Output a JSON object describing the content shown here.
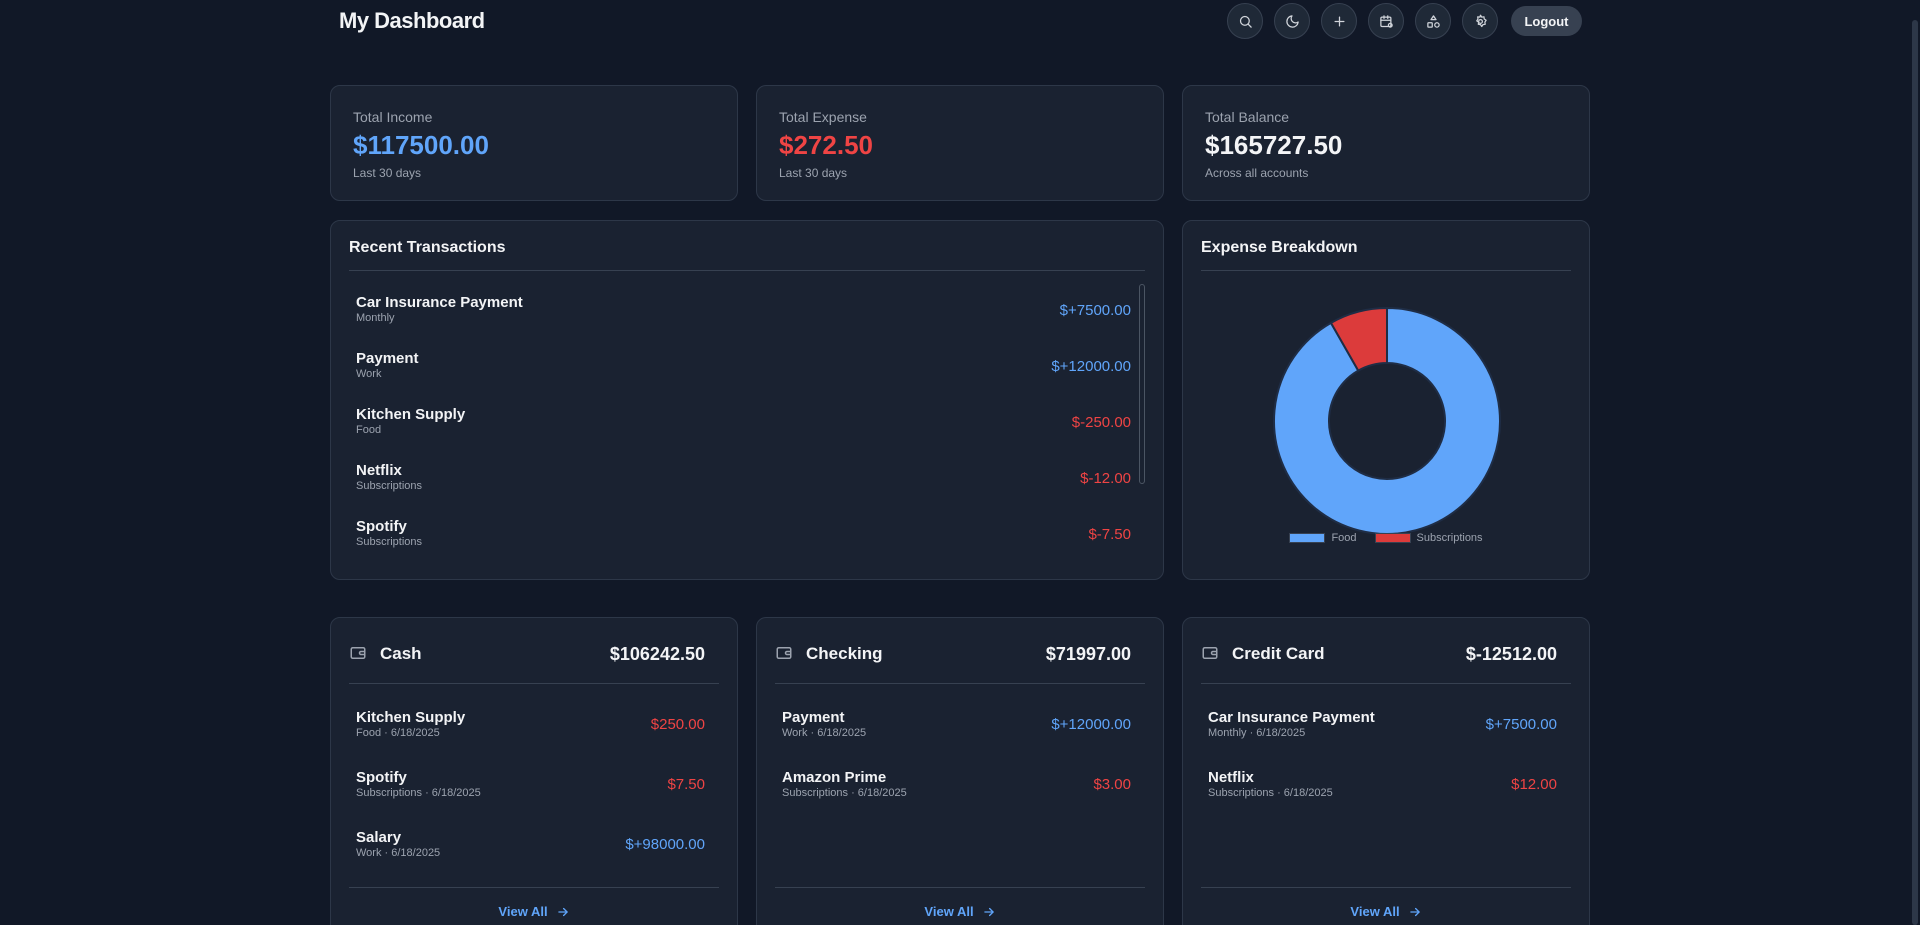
{
  "header": {
    "title": "My Dashboard",
    "logout_label": "Logout",
    "icons": [
      "search-icon",
      "moon-icon",
      "plus-icon",
      "calendar-icon",
      "shapes-icon",
      "gear-icon"
    ]
  },
  "stats": [
    {
      "label": "Total Income",
      "value": "$117500.00",
      "sub": "Last 30 days",
      "color": "#60a5fa"
    },
    {
      "label": "Total Expense",
      "value": "$272.50",
      "sub": "Last 30 days",
      "color": "#ef4444"
    },
    {
      "label": "Total Balance",
      "value": "$165727.50",
      "sub": "Across all accounts",
      "color": "#f3f4f6"
    }
  ],
  "recent": {
    "title": "Recent Transactions",
    "items": [
      {
        "name": "Car Insurance Payment",
        "category": "Monthly",
        "amount": "$+7500.00",
        "type": "pos"
      },
      {
        "name": "Payment",
        "category": "Work",
        "amount": "$+12000.00",
        "type": "pos"
      },
      {
        "name": "Kitchen Supply",
        "category": "Food",
        "amount": "$-250.00",
        "type": "neg"
      },
      {
        "name": "Netflix",
        "category": "Subscriptions",
        "amount": "$-12.00",
        "type": "neg"
      },
      {
        "name": "Spotify",
        "category": "Subscriptions",
        "amount": "$-7.50",
        "type": "neg"
      }
    ]
  },
  "breakdown": {
    "title": "Expense Breakdown",
    "chart_data": {
      "type": "pie",
      "categories": [
        "Food",
        "Subscriptions"
      ],
      "values": [
        250,
        22.5
      ],
      "colors": [
        "#60a5fa",
        "#dc3b3b"
      ]
    }
  },
  "accounts": [
    {
      "name": "Cash",
      "total": "$106242.50",
      "items": [
        {
          "name": "Kitchen Supply",
          "meta": "Food · 6/18/2025",
          "amount": "$250.00",
          "type": "neg"
        },
        {
          "name": "Spotify",
          "meta": "Subscriptions · 6/18/2025",
          "amount": "$7.50",
          "type": "neg"
        },
        {
          "name": "Salary",
          "meta": "Work · 6/18/2025",
          "amount": "$+98000.00",
          "type": "pos"
        }
      ],
      "view_all": "View All"
    },
    {
      "name": "Checking",
      "total": "$71997.00",
      "items": [
        {
          "name": "Payment",
          "meta": "Work · 6/18/2025",
          "amount": "$+12000.00",
          "type": "pos"
        },
        {
          "name": "Amazon Prime",
          "meta": "Subscriptions · 6/18/2025",
          "amount": "$3.00",
          "type": "neg"
        }
      ],
      "view_all": "View All"
    },
    {
      "name": "Credit Card",
      "total": "$-12512.00",
      "items": [
        {
          "name": "Car Insurance Payment",
          "meta": "Monthly · 6/18/2025",
          "amount": "$+7500.00",
          "type": "pos"
        },
        {
          "name": "Netflix",
          "meta": "Subscriptions · 6/18/2025",
          "amount": "$12.00",
          "type": "neg"
        }
      ],
      "view_all": "View All"
    }
  ]
}
